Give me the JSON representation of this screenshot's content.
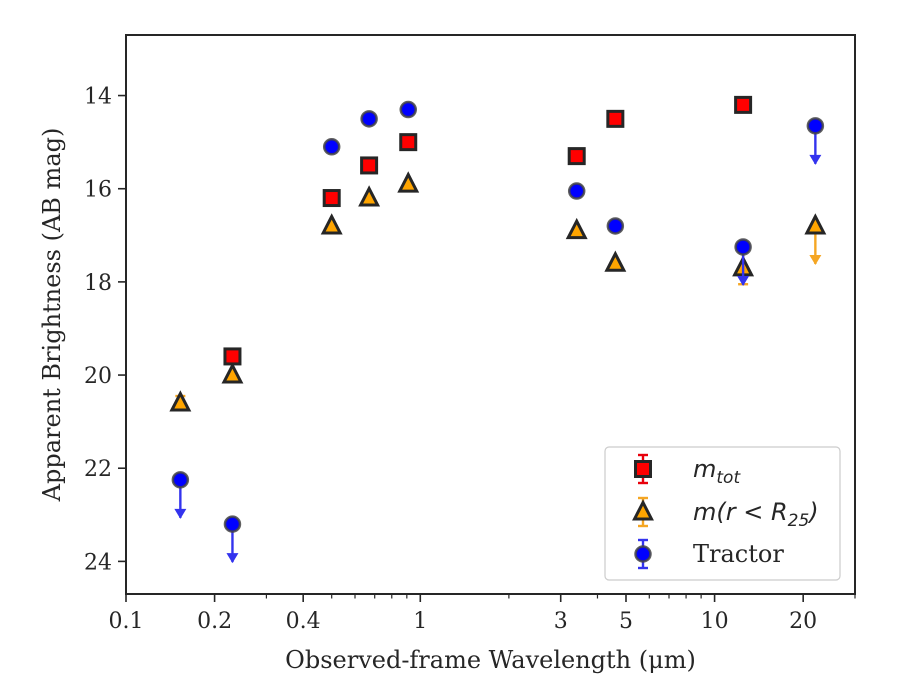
{
  "chart_data": {
    "type": "scatter",
    "xlabel": "Observed-frame Wavelength (μm)",
    "ylabel": "Apparent Brightness (AB mag)",
    "xscale": "log",
    "xlim": [
      0.1,
      30
    ],
    "ylim": [
      24.7,
      12.7
    ],
    "y_inverted": true,
    "grid": false,
    "legend_position": "lower-right",
    "x_ticks": [
      {
        "value": 0.1,
        "label": "0.1"
      },
      {
        "value": 0.2,
        "label": "0.2"
      },
      {
        "value": 0.4,
        "label": "0.4"
      },
      {
        "value": 1,
        "label": "1"
      },
      {
        "value": 3,
        "label": "3"
      },
      {
        "value": 5,
        "label": "5"
      },
      {
        "value": 10,
        "label": "10"
      },
      {
        "value": 20,
        "label": "20"
      }
    ],
    "y_ticks": [
      {
        "value": 14,
        "label": "14"
      },
      {
        "value": 16,
        "label": "16"
      },
      {
        "value": 18,
        "label": "18"
      },
      {
        "value": 20,
        "label": "20"
      },
      {
        "value": 22,
        "label": "22"
      },
      {
        "value": 24,
        "label": "24"
      }
    ],
    "series": [
      {
        "name": "m_tot",
        "legend_main": "m",
        "legend_sub": "tot",
        "marker": "square",
        "color": "#ff0000",
        "errcolor": "#e8000b",
        "points": [
          {
            "x": 0.23,
            "y": 19.6
          },
          {
            "x": 0.5,
            "y": 16.2
          },
          {
            "x": 0.67,
            "y": 15.5
          },
          {
            "x": 0.91,
            "y": 15.0
          },
          {
            "x": 3.4,
            "y": 15.3
          },
          {
            "x": 4.6,
            "y": 14.5
          },
          {
            "x": 12.5,
            "y": 14.2
          }
        ]
      },
      {
        "name": "m(r < R25)",
        "legend_main": "m(r < R",
        "legend_sub": "25",
        "legend_tail": ")",
        "marker": "triangle",
        "color": "#ffa500",
        "errcolor": "#f5a623",
        "points": [
          {
            "x": 0.153,
            "y": 20.6,
            "err": 0.15
          },
          {
            "x": 0.23,
            "y": 20.0
          },
          {
            "x": 0.5,
            "y": 16.8
          },
          {
            "x": 0.67,
            "y": 16.2
          },
          {
            "x": 0.91,
            "y": 15.9
          },
          {
            "x": 3.4,
            "y": 16.9
          },
          {
            "x": 4.6,
            "y": 17.6
          },
          {
            "x": 12.5,
            "y": 17.7,
            "err": 0.35
          },
          {
            "x": 22,
            "y": 16.8,
            "upper_limit": true
          }
        ]
      },
      {
        "name": "Tractor",
        "legend_main": "Tractor",
        "marker": "circle",
        "color": "#0000ff",
        "errcolor": "#3333ee",
        "points": [
          {
            "x": 0.153,
            "y": 22.25,
            "upper_limit": true
          },
          {
            "x": 0.23,
            "y": 23.2,
            "upper_limit": true
          },
          {
            "x": 0.5,
            "y": 15.1
          },
          {
            "x": 0.67,
            "y": 14.5
          },
          {
            "x": 0.91,
            "y": 14.3
          },
          {
            "x": 3.4,
            "y": 16.05
          },
          {
            "x": 4.6,
            "y": 16.8
          },
          {
            "x": 12.5,
            "y": 17.25,
            "upper_limit": true
          },
          {
            "x": 22,
            "y": 14.65,
            "upper_limit": true
          }
        ]
      }
    ]
  }
}
